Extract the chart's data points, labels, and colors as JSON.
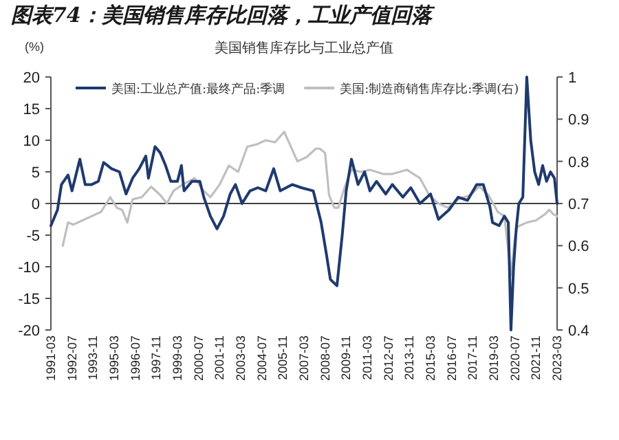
{
  "chart_data": {
    "type": "line",
    "title": "图表74：美国销售库存比回落，工业产值回落",
    "subtitle": "美国销售库存比与工业总产值",
    "ylabel": "(%)",
    "xlim": [
      "1991-03",
      "2023-03"
    ],
    "xticks": [
      {
        "value": "1991-03",
        "label": "1991-03"
      },
      {
        "value": "1992-07",
        "label": "1992-07"
      },
      {
        "value": "1993-11",
        "label": "1993-11"
      },
      {
        "value": "1995-03",
        "label": "1995-03"
      },
      {
        "value": "1996-07",
        "label": "1996-07"
      },
      {
        "value": "1997-11",
        "label": "1997-11"
      },
      {
        "value": "1999-03",
        "label": "1999-03"
      },
      {
        "value": "2000-07",
        "label": "2000-07"
      },
      {
        "value": "2001-11",
        "label": "2001-11"
      },
      {
        "value": "2003-03",
        "label": "2003-03"
      },
      {
        "value": "2004-07",
        "label": "2004-07"
      },
      {
        "value": "2005-11",
        "label": "2005-11"
      },
      {
        "value": "2007-03",
        "label": "2007-03"
      },
      {
        "value": "2008-07",
        "label": "2008-07"
      },
      {
        "value": "2009-11",
        "label": "2009-11"
      },
      {
        "value": "2011-03",
        "label": "2011-03"
      },
      {
        "value": "2012-07",
        "label": "2012-07"
      },
      {
        "value": "2013-11",
        "label": "2013-11"
      },
      {
        "value": "2015-03",
        "label": "2015-03"
      },
      {
        "value": "2016-07",
        "label": "2016-07"
      },
      {
        "value": "2017-11",
        "label": "2017-11"
      },
      {
        "value": "2019-03",
        "label": "2019-03"
      },
      {
        "value": "2020-07",
        "label": "2020-07"
      },
      {
        "value": "2021-11",
        "label": "2021-11"
      },
      {
        "value": "2023-03",
        "label": "2023-03"
      }
    ],
    "ylim": [
      -20,
      20
    ],
    "yticks": [
      -20,
      -15,
      -10,
      -5,
      0,
      5,
      10,
      15,
      20
    ],
    "y2lim": [
      0.4,
      1
    ],
    "y2ticks": [
      0.4,
      0.5,
      0.6,
      0.7,
      0.8,
      0.9,
      1
    ],
    "ref_lines": [
      {
        "axis": "y",
        "value": 0,
        "color": "#404040"
      }
    ],
    "legend": "top",
    "grid": false,
    "marker": "none",
    "line_style": "solid",
    "series": [
      {
        "name": "美国:工业总产值:最终产品:季调",
        "color": "#1f3a6e",
        "x": [
          "1991-03",
          "1991-08",
          "1991-11",
          "1992-04",
          "1992-07",
          "1993-01",
          "1993-05",
          "1993-10",
          "1994-03",
          "1994-07",
          "1995-01",
          "1995-07",
          "1995-12",
          "1996-05",
          "1996-10",
          "1997-03",
          "1997-05",
          "1997-10",
          "1998-02",
          "1998-06",
          "1998-10",
          "1999-03",
          "1999-06",
          "1999-08",
          "2000-02",
          "2000-08",
          "2000-11",
          "2001-04",
          "2001-09",
          "2002-02",
          "2002-07",
          "2002-11",
          "2003-04",
          "2003-10",
          "2004-04",
          "2004-10",
          "2005-04",
          "2005-09",
          "2006-06",
          "2007-01",
          "2007-10",
          "2008-04",
          "2008-08",
          "2008-11",
          "2009-04",
          "2009-08",
          "2009-11",
          "2010-03",
          "2010-08",
          "2011-01",
          "2011-05",
          "2011-10",
          "2012-05",
          "2012-10",
          "2013-06",
          "2013-12",
          "2014-07",
          "2015-03",
          "2015-09",
          "2016-05",
          "2016-12",
          "2017-07",
          "2018-02",
          "2018-07",
          "2018-12",
          "2019-02",
          "2019-07",
          "2019-11",
          "2020-02",
          "2020-04",
          "2020-06",
          "2020-08",
          "2020-10",
          "2021-01",
          "2021-04",
          "2021-07",
          "2021-10",
          "2022-01",
          "2022-04",
          "2022-07",
          "2022-10",
          "2023-01",
          "2023-03"
        ],
        "values": [
          -3.5,
          -1,
          3,
          4.5,
          2,
          7,
          3,
          3,
          3.5,
          6.5,
          5.5,
          5,
          1.5,
          4,
          5.5,
          7.5,
          4,
          9,
          8,
          6,
          3.5,
          3.5,
          6,
          2,
          3.5,
          3.5,
          1,
          -2,
          -4,
          -2,
          1.5,
          3,
          0,
          2,
          2.5,
          2,
          5.5,
          2,
          3,
          2.5,
          2,
          -3,
          -8,
          -12,
          -13,
          -5,
          2,
          7,
          3,
          5,
          2,
          3.5,
          1.5,
          3,
          1,
          2.5,
          0,
          1.5,
          -2.5,
          -1,
          1,
          0.5,
          3,
          3,
          -0.5,
          -3,
          -3.5,
          -2,
          -3,
          -20,
          -10,
          -4,
          0,
          1,
          20,
          10,
          5,
          3,
          6,
          3.5,
          5,
          4,
          0
        ]
      },
      {
        "name": "美国:制造商销售库存比:季调(右)",
        "color": "#bfbfbf",
        "axis": "y2",
        "x": [
          "1991-12",
          "1992-04",
          "1992-08",
          "1993-03",
          "1993-10",
          "1994-05",
          "1994-12",
          "1995-05",
          "1995-09",
          "1996-01",
          "1996-05",
          "1996-12",
          "1997-07",
          "1998-02",
          "1998-07",
          "1998-12",
          "1999-07",
          "2000-04",
          "2000-11",
          "2001-04",
          "2001-11",
          "2002-06",
          "2003-01",
          "2003-08",
          "2004-03",
          "2004-10",
          "2005-05",
          "2005-12",
          "2006-05",
          "2006-10",
          "2007-05",
          "2007-12",
          "2008-03",
          "2008-07",
          "2008-10",
          "2009-02",
          "2009-05",
          "2009-10",
          "2010-03",
          "2010-10",
          "2011-05",
          "2012-03",
          "2012-10",
          "2013-09",
          "2014-07",
          "2015-02",
          "2015-09",
          "2016-04",
          "2016-12",
          "2017-09",
          "2018-04",
          "2018-11",
          "2019-06",
          "2019-11",
          "2020-04",
          "2020-07",
          "2020-09",
          "2021-04",
          "2021-11",
          "2022-06",
          "2022-09",
          "2022-12",
          "2023-03"
        ],
        "values": [
          0.6,
          0.655,
          0.65,
          0.66,
          0.67,
          0.68,
          0.715,
          0.69,
          0.685,
          0.655,
          0.71,
          0.715,
          0.74,
          0.72,
          0.7,
          0.73,
          0.745,
          0.76,
          0.73,
          0.715,
          0.745,
          0.79,
          0.775,
          0.835,
          0.84,
          0.85,
          0.845,
          0.87,
          0.835,
          0.8,
          0.81,
          0.83,
          0.83,
          0.82,
          0.72,
          0.69,
          0.69,
          0.74,
          0.78,
          0.775,
          0.78,
          0.77,
          0.77,
          0.78,
          0.76,
          0.72,
          0.7,
          0.69,
          0.71,
          0.72,
          0.74,
          0.72,
          0.68,
          0.67,
          0.53,
          0.62,
          0.645,
          0.655,
          0.66,
          0.675,
          0.685,
          0.675,
          0.67
        ]
      }
    ]
  }
}
